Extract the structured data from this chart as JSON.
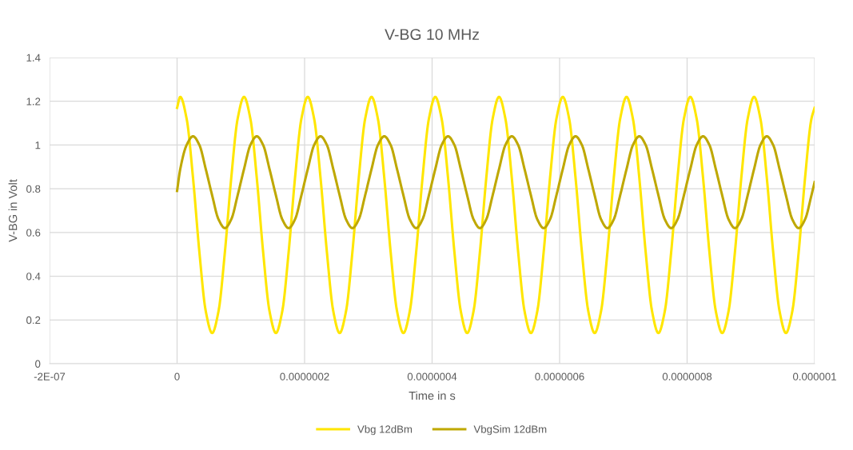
{
  "chart_data": {
    "type": "line",
    "title": "V-BG 10 MHz",
    "xlabel": "Time in s",
    "ylabel": "V-BG in Volt",
    "x": [
      0,
      5e-09,
      1.5e-08,
      2.5e-08,
      3.5e-08,
      4.5e-08,
      5.5e-08,
      6.5e-08,
      7.5e-08,
      8.5e-08,
      9.5e-08,
      1.05e-07,
      1.15e-07,
      1.25e-07,
      1.35e-07,
      1.45e-07,
      1.55e-07,
      1.65e-07,
      1.75e-07,
      1.85e-07,
      1.95e-07,
      2.05e-07,
      2.15e-07,
      2.25e-07,
      2.35e-07,
      2.45e-07,
      2.55e-07,
      2.65e-07,
      2.75e-07,
      2.85e-07,
      2.95e-07,
      3.05e-07,
      3.15e-07,
      3.25e-07,
      3.35e-07,
      3.45e-07,
      3.55e-07,
      3.65e-07,
      3.75e-07,
      3.85e-07,
      3.95e-07,
      4.05e-07,
      4.15e-07,
      4.25e-07,
      4.35e-07,
      4.45e-07,
      4.55e-07,
      4.65e-07,
      4.75e-07,
      4.85e-07,
      4.95e-07,
      5.05e-07,
      5.15e-07,
      5.25e-07,
      5.35e-07,
      5.45e-07,
      5.55e-07,
      5.65e-07,
      5.75e-07,
      5.85e-07,
      5.95e-07,
      6.05e-07,
      6.15e-07,
      6.25e-07,
      6.35e-07,
      6.45e-07,
      6.55e-07,
      6.65e-07,
      6.75e-07,
      6.85e-07,
      6.95e-07,
      7.05e-07,
      7.15e-07,
      7.25e-07,
      7.35e-07,
      7.45e-07,
      7.55e-07,
      7.65e-07,
      7.75e-07,
      7.85e-07,
      7.95e-07,
      8.05e-07,
      8.15e-07,
      8.25e-07,
      8.35e-07,
      8.45e-07,
      8.55e-07,
      8.65e-07,
      8.75e-07,
      8.85e-07,
      8.95e-07,
      9.05e-07,
      9.15e-07,
      9.25e-07,
      9.35e-07,
      9.45e-07,
      9.55e-07,
      9.65e-07,
      9.75e-07,
      9.85e-07,
      9.95e-07,
      1e-06
    ],
    "series": [
      {
        "name": "Vbg 12dBm",
        "color": "#ffe600",
        "values": [
          1.17,
          1.22,
          1.12,
          0.85,
          0.51,
          0.24,
          0.14,
          0.24,
          0.51,
          0.85,
          1.12,
          1.22,
          1.12,
          0.85,
          0.51,
          0.24,
          0.14,
          0.24,
          0.51,
          0.85,
          1.12,
          1.22,
          1.12,
          0.85,
          0.51,
          0.24,
          0.14,
          0.24,
          0.51,
          0.85,
          1.12,
          1.22,
          1.12,
          0.85,
          0.51,
          0.24,
          0.14,
          0.24,
          0.51,
          0.85,
          1.12,
          1.22,
          1.12,
          0.85,
          0.51,
          0.24,
          0.14,
          0.24,
          0.51,
          0.85,
          1.12,
          1.22,
          1.12,
          0.85,
          0.51,
          0.24,
          0.14,
          0.24,
          0.51,
          0.85,
          1.12,
          1.22,
          1.12,
          0.85,
          0.51,
          0.24,
          0.14,
          0.24,
          0.51,
          0.85,
          1.12,
          1.22,
          1.12,
          0.85,
          0.51,
          0.24,
          0.14,
          0.24,
          0.51,
          0.85,
          1.12,
          1.22,
          1.12,
          0.85,
          0.51,
          0.24,
          0.14,
          0.24,
          0.51,
          0.85,
          1.12,
          1.22,
          1.12,
          0.85,
          0.51,
          0.24,
          0.14,
          0.24,
          0.51,
          0.85,
          1.12,
          1.17
        ]
      },
      {
        "name": "VbgSim 12dBm",
        "color": "#bfa800",
        "values": [
          0.79,
          0.89,
          1.0,
          1.04,
          1.0,
          0.89,
          0.77,
          0.66,
          0.62,
          0.66,
          0.77,
          0.89,
          1.0,
          1.04,
          1.0,
          0.89,
          0.77,
          0.66,
          0.62,
          0.66,
          0.77,
          0.89,
          1.0,
          1.04,
          1.0,
          0.89,
          0.77,
          0.66,
          0.62,
          0.66,
          0.77,
          0.89,
          1.0,
          1.04,
          1.0,
          0.89,
          0.77,
          0.66,
          0.62,
          0.66,
          0.77,
          0.89,
          1.0,
          1.04,
          1.0,
          0.89,
          0.77,
          0.66,
          0.62,
          0.66,
          0.77,
          0.89,
          1.0,
          1.04,
          1.0,
          0.89,
          0.77,
          0.66,
          0.62,
          0.66,
          0.77,
          0.89,
          1.0,
          1.04,
          1.0,
          0.89,
          0.77,
          0.66,
          0.62,
          0.66,
          0.77,
          0.89,
          1.0,
          1.04,
          1.0,
          0.89,
          0.77,
          0.66,
          0.62,
          0.66,
          0.77,
          0.89,
          1.0,
          1.04,
          1.0,
          0.89,
          0.77,
          0.66,
          0.62,
          0.66,
          0.77,
          0.89,
          1.0,
          1.04,
          1.0,
          0.89,
          0.77,
          0.66,
          0.62,
          0.66,
          0.77,
          0.83
        ]
      }
    ],
    "xlim": [
      -2e-07,
      1e-06
    ],
    "xticks": [
      {
        "value": -2e-07,
        "label": "-2E-07"
      },
      0,
      {
        "value": 2e-07,
        "label": "0.0000002"
      },
      {
        "value": 4e-07,
        "label": "0.0000004"
      },
      {
        "value": 6e-07,
        "label": "0.0000006"
      },
      {
        "value": 8e-07,
        "label": "0.0000008"
      },
      {
        "value": 1e-06,
        "label": "0.000001"
      }
    ],
    "ylim": [
      0,
      1.4
    ],
    "yticks": [
      0,
      0.2,
      0.4,
      0.6,
      0.8,
      1,
      1.2,
      1.4
    ],
    "grid": true,
    "legend": "bottom",
    "marker": "none",
    "line_style": "solid"
  }
}
